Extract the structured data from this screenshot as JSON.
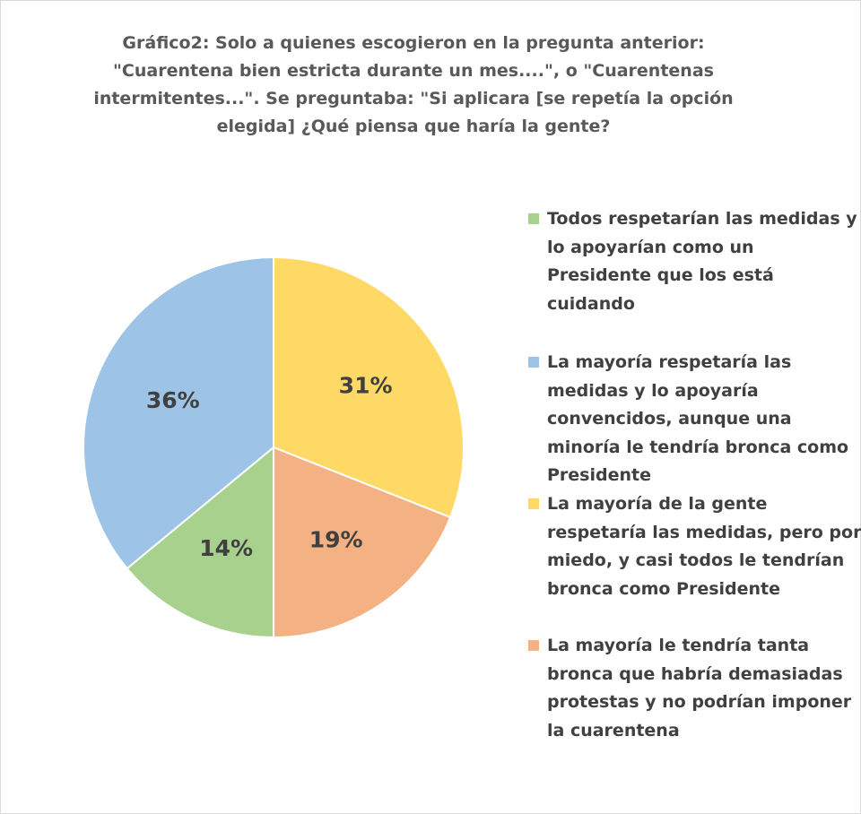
{
  "chart_data": {
    "type": "pie",
    "title_lines": [
      "Gráfico2: Solo a quienes escogieron en la pregunta anterior:",
      "\"Cuarentena bien estricta durante un mes....\", o \"Cuarentenas",
      "intermitentes...\".  Se preguntaba: \"Si aplicara [se repetía la opción",
      "elegida] ¿Qué piensa que haría la gente?"
    ],
    "slices": [
      {
        "label_lines": [
          "Todos respetarían las medidas y",
          "lo apoyarían como un",
          "Presidente que los está",
          "cuidando"
        ],
        "value": 14,
        "data_label": "14%",
        "color": "#a9d18e"
      },
      {
        "label_lines": [
          "La mayoría respetaría las",
          "medidas y lo apoyaría",
          "convencidos, aunque una",
          "minoría le tendría bronca como",
          "Presidente"
        ],
        "value": 36,
        "data_label": "36%",
        "color": "#9dc3e6"
      },
      {
        "label_lines": [
          "La mayoría de la gente",
          "respetaría las medidas, pero por",
          "miedo, y casi todos le tendrían",
          "bronca como Presidente"
        ],
        "value": 31,
        "data_label": "31%",
        "color": "#ffd966"
      },
      {
        "label_lines": [
          "La mayoría le tendría tanta",
          "bronca que habría demasiadas",
          "protestas y no podrían imponer",
          "la cuarentena"
        ],
        "value": 19,
        "data_label": "19%",
        "color": "#f4b183"
      }
    ],
    "draw_order": [
      2,
      3,
      0,
      1
    ],
    "start_angle_deg": 0,
    "direction": "clockwise",
    "legend_placement": "right"
  }
}
